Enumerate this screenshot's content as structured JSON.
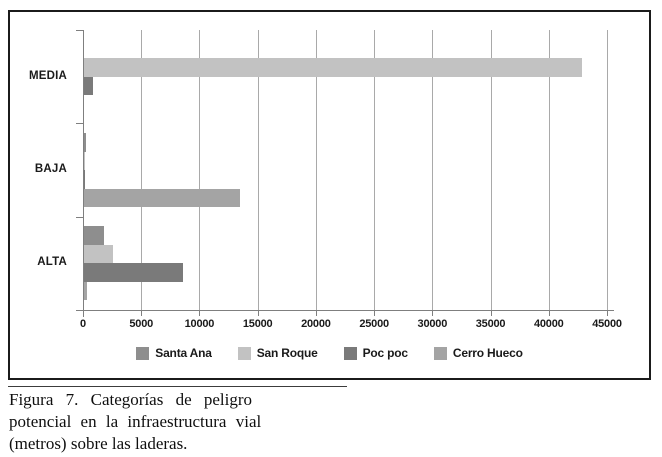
{
  "figure": {
    "caption_lines": [
      "Figura 7. Categorías de peligro",
      "potencial en la infraestructura vial",
      "(metros) sobre las laderas."
    ]
  },
  "chart_data": {
    "type": "bar",
    "orientation": "horizontal",
    "title": "",
    "categories": [
      "MEDIA",
      "BAJA",
      "ALTA"
    ],
    "series": [
      {
        "name": "Santa Ana",
        "color": "#8e8e8e",
        "values": [
          0,
          150,
          1700
        ]
      },
      {
        "name": "San Roque",
        "color": "#c2c2c2",
        "values": [
          42800,
          100,
          2500
        ]
      },
      {
        "name": "Poc poc",
        "color": "#7a7a7a",
        "values": [
          750,
          100,
          8500
        ]
      },
      {
        "name": "Cerro Hueco",
        "color": "#a4a4a4",
        "values": [
          0,
          13400,
          250
        ]
      }
    ],
    "x_ticks": [
      0,
      5000,
      10000,
      15000,
      20000,
      25000,
      30000,
      35000,
      40000,
      45000
    ],
    "xlim": [
      0,
      45000
    ],
    "grid": true,
    "legend_position": "bottom",
    "axis_color": "#7f7f7f",
    "grid_color": "#a9a9a9",
    "text_color": "#1a1a1a"
  }
}
